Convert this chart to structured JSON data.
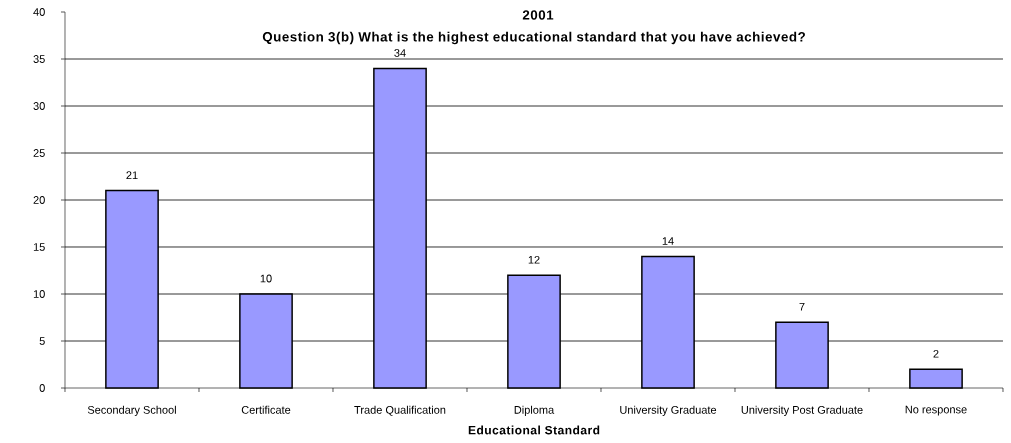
{
  "chart_data": {
    "type": "bar",
    "title": "2001",
    "subtitle": "Question 3(b) What is the highest educational standard that you have achieved?",
    "xlabel": "Educational Standard",
    "categories": [
      "Secondary School",
      "Certificate",
      "Trade Qualification",
      "Diploma",
      "University Graduate",
      "University Post Graduate",
      "No response"
    ],
    "values": [
      21,
      10,
      34,
      12,
      14,
      7,
      2
    ],
    "color": "#9999ff",
    "ylim": [
      0,
      40
    ],
    "yticks": [
      0,
      5,
      10,
      15,
      20,
      25,
      30,
      35,
      40
    ],
    "grid": "y",
    "data_labels": true
  }
}
